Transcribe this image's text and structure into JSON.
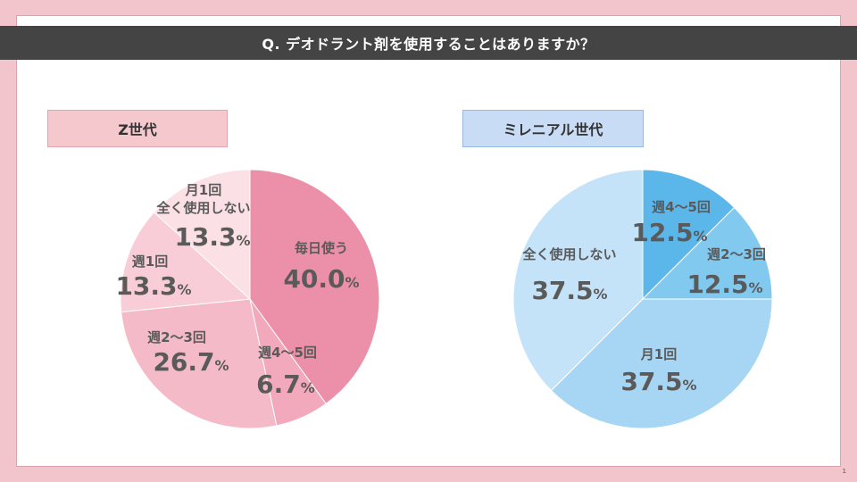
{
  "title": "Q. デオドラント剤を使用することはありますか？",
  "page_number": "1",
  "colors": {
    "header_bg": "#444444",
    "frame_bg": "#f1c5cb",
    "z_label_bg": "#f5c8cd",
    "m_label_bg": "#c9dcf5",
    "label_text": "#5a5a5a"
  },
  "chart_data": [
    {
      "type": "pie",
      "title": "Z世代",
      "slices": [
        {
          "label": "毎日使う",
          "value": 40.0,
          "display": "40.0",
          "color": "#ec8fa8"
        },
        {
          "label": "週4～5回",
          "value": 6.7,
          "display": "6.7",
          "color": "#f3a9bc"
        },
        {
          "label": "週2～3回",
          "value": 26.7,
          "display": "26.7",
          "color": "#f5bac8"
        },
        {
          "label": "週1回",
          "value": 13.3,
          "display": "13.3",
          "color": "#f8cdd7"
        },
        {
          "label": "月1回\n全く使用しない",
          "value": 13.3,
          "display": "13.3",
          "color": "#fbe0e6"
        }
      ],
      "unit": "%"
    },
    {
      "type": "pie",
      "title": "ミレニアル世代",
      "slices": [
        {
          "label": "週4～5回",
          "value": 12.5,
          "display": "12.5",
          "color": "#5bb6ea"
        },
        {
          "label": "週2～3回",
          "value": 12.5,
          "display": "12.5",
          "color": "#82c9f0"
        },
        {
          "label": "月1回",
          "value": 37.5,
          "display": "37.5",
          "color": "#a6d6f4"
        },
        {
          "label": "全く使用しない",
          "value": 37.5,
          "display": "37.5",
          "color": "#c5e3f8"
        }
      ],
      "unit": "%"
    }
  ]
}
